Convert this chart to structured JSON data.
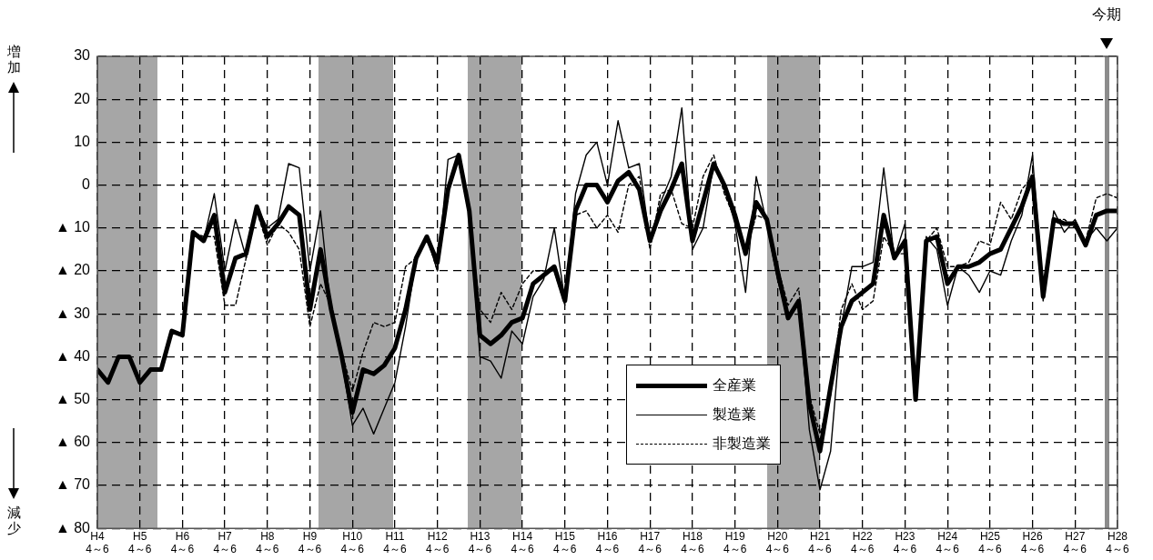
{
  "chart_data": {
    "type": "line",
    "annotations": [
      "増加",
      "減少",
      "今期"
    ],
    "categories": [
      "H4 4～6",
      null,
      null,
      null,
      "H5 4～6",
      null,
      null,
      null,
      "H6 4～6",
      null,
      null,
      null,
      "H7 4～6",
      null,
      null,
      null,
      "H8 4～6",
      null,
      null,
      null,
      "H9 4～6",
      null,
      null,
      null,
      "H10 4～6",
      null,
      null,
      null,
      "H11 4～6",
      null,
      null,
      null,
      "H12 4～6",
      null,
      null,
      null,
      "H13 4～6",
      null,
      null,
      null,
      "H14 4～6",
      null,
      null,
      null,
      "H15 4～6",
      null,
      null,
      null,
      "H16 4～6",
      null,
      null,
      null,
      "H17 4～6",
      null,
      null,
      null,
      "H18 4～6",
      null,
      null,
      null,
      "H19 4～6",
      null,
      null,
      null,
      "H20 4～6",
      null,
      null,
      null,
      "H21 4～6",
      null,
      null,
      null,
      "H22 4～6",
      null,
      null,
      null,
      "H23 4～6",
      null,
      null,
      null,
      "H24 4～6",
      null,
      null,
      null,
      "H25 4～6",
      null,
      null,
      null,
      "H26 4～6",
      null,
      null,
      null,
      "H27 4～6",
      null,
      null,
      null,
      "H28 4～6"
    ],
    "series": [
      {
        "name": "全産業",
        "color": "#000000",
        "line_style": "solid",
        "values": [
          -43,
          -46,
          -40,
          -40,
          -46,
          -43,
          -43,
          -34,
          -35,
          -11,
          -13,
          -7,
          -25,
          -17,
          -16,
          -5,
          -12,
          -9,
          -5,
          -7,
          -29,
          -15,
          -29,
          -40,
          -53,
          -43,
          -44,
          -42,
          -38,
          -29,
          -17,
          -12,
          -18,
          -1,
          7,
          -6,
          -35,
          -37,
          -35,
          -32,
          -31,
          -23,
          -21,
          -19,
          -27,
          -6,
          0,
          0,
          -4,
          1,
          3,
          -1,
          -13,
          -6,
          -1,
          5,
          -13,
          -4,
          5,
          0,
          -7,
          -16,
          -4,
          -8,
          -20,
          -31,
          -27,
          -51,
          -62,
          -47,
          -33,
          -27,
          -25,
          -23,
          -7,
          -17,
          -13,
          -50,
          -13,
          -12,
          -23,
          -19,
          -19,
          -18,
          -16,
          -15,
          -10,
          -5,
          2,
          -26,
          -8,
          -9,
          -9,
          -14,
          -7,
          -6,
          -6
        ]
      },
      {
        "name": "製造業",
        "color": "#000000",
        "line_style": "solid",
        "values": [
          -43,
          -46,
          -40,
          -40,
          -46,
          -43,
          -43,
          -34,
          -35,
          -11,
          -13,
          -2,
          -20,
          -8,
          -17,
          -5,
          -10,
          -8,
          5,
          4,
          -20,
          -6,
          -30,
          -41,
          -56,
          -52,
          -58,
          -52,
          -46,
          -33,
          -17,
          -12,
          -20,
          6,
          7,
          -6,
          -40,
          -41,
          -45,
          -34,
          -37,
          -26,
          -22,
          -10,
          -27,
          -2,
          7,
          10,
          0,
          15,
          4,
          5,
          -13,
          -4,
          2,
          18,
          -15,
          -10,
          5,
          0,
          -9,
          -25,
          2,
          -9,
          -22,
          -31,
          -27,
          -57,
          -71,
          -62,
          -33,
          -19,
          -19,
          -18,
          4,
          -17,
          -9,
          -50,
          -12,
          -15,
          -28,
          -19,
          -21,
          -25,
          -20,
          -21,
          -13,
          -7,
          7,
          -27,
          -6,
          -11,
          -8,
          -13,
          -10,
          -13,
          -10
        ]
      },
      {
        "name": "非製造業",
        "color": "#000000",
        "line_style": "dashed",
        "values": [
          -43,
          -46,
          -40,
          -40,
          -46,
          -43,
          -43,
          -34,
          -35,
          -11,
          -12,
          -12,
          -28,
          -28,
          -17,
          -6,
          -14,
          -9,
          -11,
          -15,
          -33,
          -23,
          -28,
          -39,
          -48,
          -39,
          -32,
          -33,
          -32,
          -19,
          -17,
          -12,
          -20,
          0,
          6,
          -7,
          -29,
          -32,
          -25,
          -29,
          -23,
          -20,
          -20,
          -20,
          -28,
          -7,
          -6,
          -10,
          -7,
          -11,
          0,
          2,
          -15,
          -2,
          -1,
          -9,
          -10,
          2,
          7,
          -2,
          -8,
          -16,
          -7,
          -8,
          -19,
          -28,
          -24,
          -49,
          -58,
          -49,
          -29,
          -23,
          -29,
          -27,
          -12,
          -16,
          -16,
          -50,
          -13,
          -10,
          -19,
          -19,
          -18,
          -13,
          -14,
          -4,
          -8,
          -1,
          2,
          -26,
          -8,
          -8,
          -10,
          -13,
          -3,
          -2,
          -3
        ]
      }
    ],
    "ylim": [
      -80,
      30
    ],
    "yticks": [
      30,
      20,
      10,
      0,
      {
        "value": -10,
        "label": "▲ 10"
      },
      {
        "value": -20,
        "label": "▲ 20"
      },
      {
        "value": -30,
        "label": "▲ 30"
      },
      {
        "value": -40,
        "label": "▲ 40"
      },
      {
        "value": -50,
        "label": "▲ 50"
      },
      {
        "value": -60,
        "label": "▲ 60"
      },
      {
        "value": -70,
        "label": "▲ 70"
      },
      {
        "value": -80,
        "label": "▲ 80"
      }
    ],
    "grid": true,
    "legend": "bottom",
    "marker": "none"
  }
}
